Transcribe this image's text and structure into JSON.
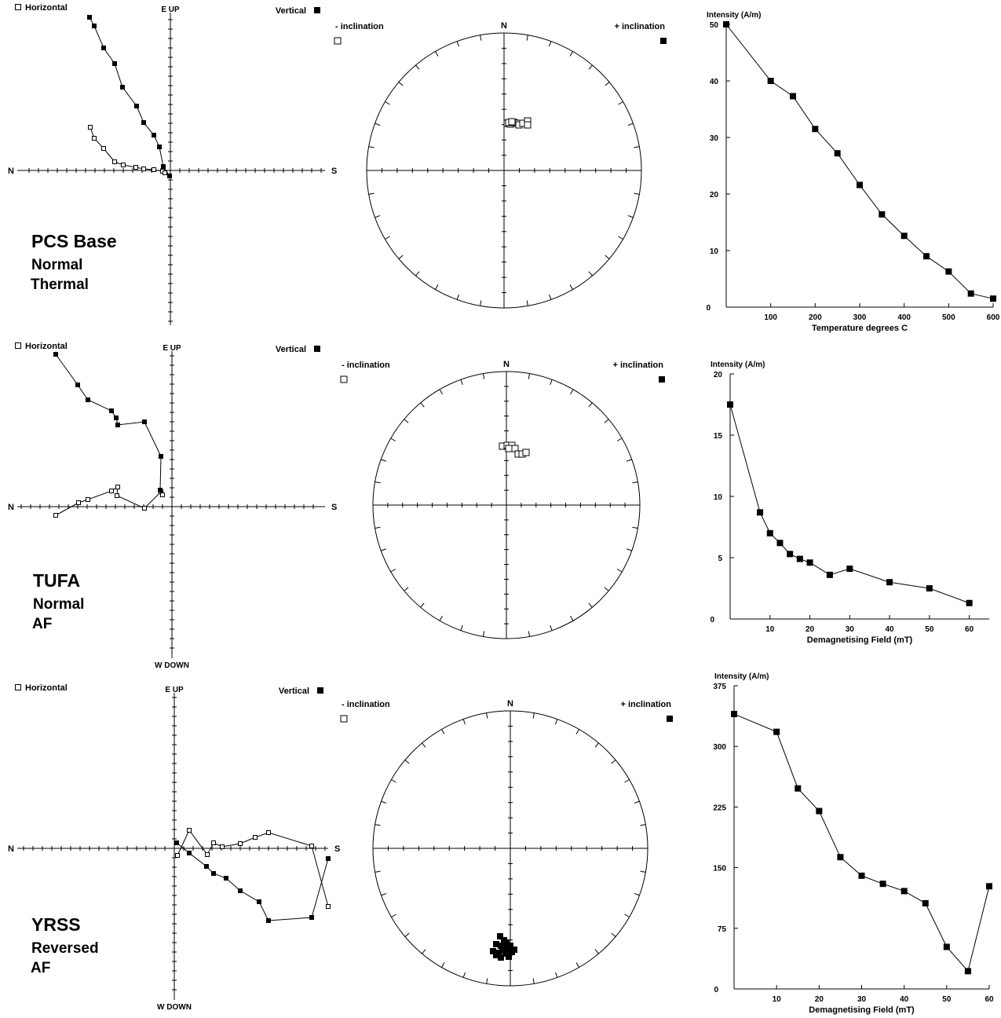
{
  "rows": [
    {
      "site": {
        "name": "PCS Base",
        "polarity": "Normal",
        "method": "Thermal"
      },
      "zijderveld": {
        "horizontal_label": "Horizontal",
        "vertical_label": "Vertical",
        "top_label": "E UP",
        "bottom_label": "",
        "left_label": "N",
        "right_label": "S"
      },
      "stereonet": {
        "north_label": "N",
        "neg_label": "- inclination",
        "pos_label": "+ inclination"
      },
      "chart_data": {
        "type": "line",
        "ylabel": "Intensity (A/m)",
        "xlabel": "Temperature degrees C",
        "origin_label": "0",
        "ylim": [
          0,
          50
        ],
        "yticks": [
          10,
          20,
          30,
          40,
          50
        ],
        "xlim": [
          0,
          600
        ],
        "xticks": [
          100,
          200,
          300,
          400,
          500,
          600
        ],
        "x": [
          0,
          100,
          150,
          200,
          250,
          300,
          350,
          400,
          450,
          500,
          550,
          600
        ],
        "values": [
          50,
          40,
          37.3,
          31.5,
          27.2,
          21.6,
          16.4,
          12.6,
          9.0,
          6.3,
          2.4,
          1.5
        ]
      }
    },
    {
      "site": {
        "name": "TUFA",
        "polarity": "Normal",
        "method": "AF"
      },
      "zijderveld": {
        "horizontal_label": "Horizontal",
        "vertical_label": "Vertical",
        "top_label": "E UP",
        "bottom_label": "W DOWN",
        "left_label": "N",
        "right_label": "S"
      },
      "stereonet": {
        "north_label": "N",
        "neg_label": "- inclination",
        "pos_label": "+ inclination"
      },
      "chart_data": {
        "type": "line",
        "ylabel": "Intensity (A/m)",
        "xlabel": "Demagnetising Field (mT)",
        "origin_label": "0",
        "ylim": [
          0,
          20
        ],
        "yticks": [
          5,
          10,
          15,
          20
        ],
        "xlim": [
          0,
          65
        ],
        "xticks": [
          10,
          20,
          30,
          40,
          50,
          60
        ],
        "x": [
          0,
          7.5,
          10,
          12.5,
          15,
          17.5,
          20,
          25,
          30,
          40,
          50,
          60
        ],
        "values": [
          17.5,
          8.7,
          7.0,
          6.2,
          5.3,
          4.9,
          4.6,
          3.6,
          4.1,
          3.0,
          2.5,
          1.3
        ]
      }
    },
    {
      "site": {
        "name": "YRSS",
        "polarity": "Reversed",
        "method": "AF"
      },
      "zijderveld": {
        "horizontal_label": "Horizontal",
        "vertical_label": "Vertical",
        "top_label": "E UP",
        "bottom_label": "W DOWN",
        "left_label": "N",
        "right_label": "S"
      },
      "stereonet": {
        "north_label": "N",
        "neg_label": "- inclination",
        "pos_label": "+ inclination"
      },
      "chart_data": {
        "type": "line",
        "ylabel": "Intensity (A/m)",
        "xlabel": "Demagnetising Field (mT)",
        "origin_label": "0",
        "ylim": [
          0,
          375
        ],
        "yticks": [
          75,
          150,
          225,
          300,
          375
        ],
        "xlim": [
          0,
          60
        ],
        "xticks": [
          10,
          20,
          30,
          40,
          50,
          60
        ],
        "x": [
          0,
          10,
          15,
          20,
          25,
          30,
          35,
          40,
          45,
          50,
          55,
          60
        ],
        "values": [
          340,
          318,
          248,
          220,
          163,
          140,
          130,
          121,
          106,
          52,
          22,
          127
        ]
      }
    }
  ]
}
